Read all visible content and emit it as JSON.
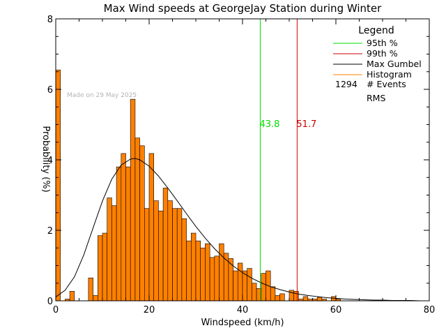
{
  "chart_data": {
    "type": "bar",
    "title": "Max Wind speeds at GeorgeJay Station during Winter",
    "xlabel": "Windspeed (km/h)",
    "ylabel": "Probability  (%)",
    "xlim": [
      0,
      80
    ],
    "ylim": [
      0,
      8
    ],
    "x_ticks": [
      0,
      20,
      40,
      60,
      80
    ],
    "y_ticks": [
      0,
      2,
      4,
      6,
      8
    ],
    "grid": false,
    "watermark": "Made on 29 May 2025",
    "bin_width": 1,
    "histogram": {
      "name": "Histogram",
      "color": "#ff8000",
      "bin_starts": [
        0,
        1,
        2,
        3,
        4,
        5,
        6,
        7,
        8,
        9,
        10,
        11,
        12,
        13,
        14,
        15,
        16,
        17,
        18,
        19,
        20,
        21,
        22,
        23,
        24,
        25,
        26,
        27,
        28,
        29,
        30,
        31,
        32,
        33,
        34,
        35,
        36,
        37,
        38,
        39,
        40,
        41,
        42,
        43,
        44,
        45,
        46,
        47,
        48,
        49,
        50,
        51,
        52,
        53,
        54,
        55,
        56,
        57,
        58,
        59,
        60,
        61,
        62,
        63,
        64,
        65,
        66,
        67,
        68,
        69,
        70,
        71,
        72,
        73,
        74,
        75,
        76,
        77,
        78,
        79
      ],
      "values": [
        6.55,
        0,
        0.05,
        0.27,
        0,
        0,
        0,
        0.65,
        0.15,
        1.85,
        1.92,
        2.92,
        2.7,
        3.8,
        4.18,
        3.8,
        5.72,
        4.62,
        4.4,
        2.62,
        4.18,
        2.84,
        2.55,
        3.2,
        2.84,
        2.62,
        2.62,
        2.33,
        1.7,
        1.92,
        1.7,
        1.5,
        1.62,
        1.23,
        1.27,
        1.62,
        1.35,
        1.2,
        0.85,
        1.07,
        0.85,
        0.92,
        0.5,
        0.35,
        0.78,
        0.85,
        0.4,
        0.15,
        0.2,
        0,
        0.3,
        0.27,
        0.05,
        0.12,
        0.05,
        0.05,
        0.1,
        0.05,
        0,
        0.12,
        0.05,
        0,
        0,
        0,
        0,
        0,
        0,
        0,
        0,
        0,
        0,
        0,
        0,
        0,
        0,
        0,
        0,
        0,
        0,
        0
      ]
    },
    "gumbel": {
      "name": "Max Gumbel",
      "color": "#000000",
      "x": [
        0,
        2,
        4,
        6,
        8,
        10,
        12,
        14,
        16,
        17,
        18,
        20,
        22,
        24,
        26,
        28,
        30,
        32,
        34,
        36,
        38,
        40,
        42,
        44,
        46,
        48,
        50,
        52,
        54,
        56,
        58,
        60,
        62,
        64,
        66,
        68,
        70,
        72,
        74,
        76,
        78,
        80
      ],
      "y": [
        0.11,
        0.3,
        0.68,
        1.3,
        2.07,
        2.83,
        3.45,
        3.85,
        4.02,
        4.04,
        4.0,
        3.82,
        3.54,
        3.2,
        2.84,
        2.47,
        2.11,
        1.78,
        1.48,
        1.22,
        0.99,
        0.8,
        0.64,
        0.51,
        0.4,
        0.32,
        0.25,
        0.19,
        0.15,
        0.12,
        0.09,
        0.07,
        0.05,
        0.04,
        0.03,
        0.02,
        0.02,
        0.01,
        0.01,
        0.01,
        0.0,
        0.0
      ]
    },
    "percentiles": [
      {
        "name": "95th %",
        "value": 43.8,
        "label": "43.8",
        "color": "#00dd00"
      },
      {
        "name": "99th %",
        "value": 51.7,
        "label": "51.7",
        "color": "#cc0000"
      }
    ],
    "legend": {
      "title": "Legend",
      "placement": "top-right",
      "entries": [
        {
          "label": "95th %",
          "color": "#00dd00"
        },
        {
          "label": "99th %",
          "color": "#cc0000"
        },
        {
          "label": "Max Gumbel",
          "color": "#000000"
        },
        {
          "label": "Histogram",
          "color": "#ff8000"
        }
      ],
      "events_count": "1294",
      "events_label": "# Events",
      "rms_label": "RMS"
    }
  }
}
